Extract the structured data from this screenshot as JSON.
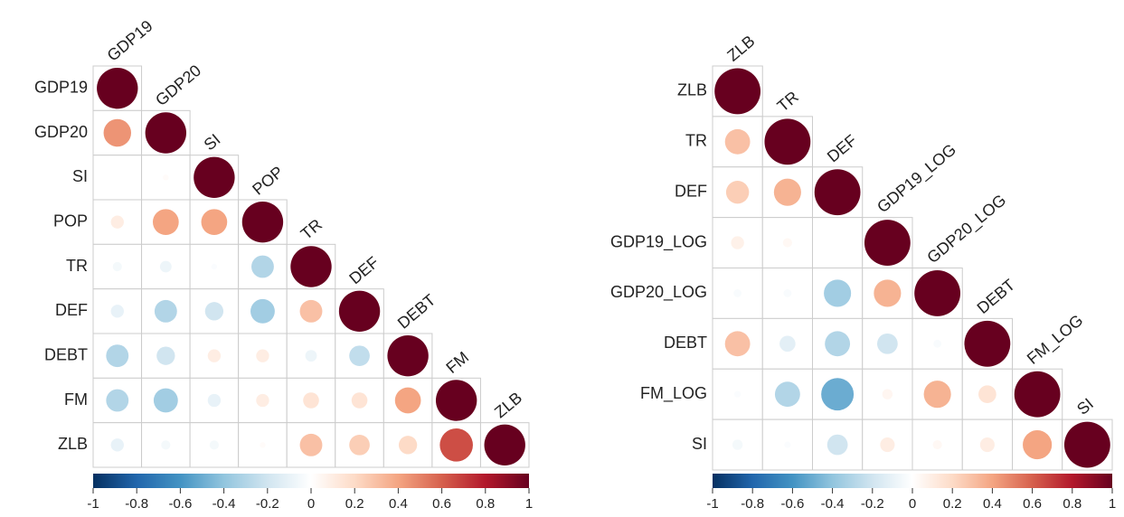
{
  "chart_data": [
    {
      "type": "corrplot",
      "variables": [
        "GDP19",
        "GDP20",
        "SI",
        "POP",
        "TR",
        "DEF",
        "DEBT",
        "FM",
        "ZLB"
      ],
      "matrix": [
        [
          1
        ],
        [
          0.45,
          1
        ],
        [
          0.0,
          0.02,
          1
        ],
        [
          0.1,
          0.4,
          0.4,
          1
        ],
        [
          -0.05,
          -0.08,
          -0.02,
          -0.3,
          1
        ],
        [
          -0.1,
          -0.3,
          -0.2,
          -0.35,
          0.3,
          1
        ],
        [
          -0.3,
          -0.2,
          0.1,
          0.1,
          -0.08,
          -0.25,
          1
        ],
        [
          -0.3,
          -0.35,
          -0.1,
          0.1,
          0.15,
          0.15,
          0.4,
          1
        ],
        [
          -0.1,
          -0.05,
          -0.05,
          0.02,
          0.3,
          0.25,
          0.2,
          0.65,
          1
        ]
      ],
      "clim": [
        -1,
        1
      ],
      "cticks": [
        -1,
        -0.8,
        -0.6,
        -0.4,
        -0.2,
        0,
        0.2,
        0.4,
        0.6,
        0.8,
        1
      ],
      "colormap": [
        "#053061",
        "#2166AC",
        "#4393C3",
        "#92C5DE",
        "#D1E5F0",
        "#FFFFFF",
        "#FDDBC7",
        "#F4A582",
        "#D6604D",
        "#B2182B",
        "#67001F"
      ]
    },
    {
      "type": "corrplot",
      "variables": [
        "ZLB",
        "TR",
        "DEF",
        "GDP19_LOG",
        "GDP20_LOG",
        "DEBT",
        "FM_LOG",
        "SI"
      ],
      "matrix": [
        [
          1
        ],
        [
          0.3,
          1
        ],
        [
          0.25,
          0.35,
          1
        ],
        [
          0.08,
          0.04,
          0.0,
          1
        ],
        [
          -0.03,
          -0.03,
          -0.35,
          0.35,
          1
        ],
        [
          0.3,
          -0.12,
          -0.3,
          -0.2,
          -0.03,
          1
        ],
        [
          -0.02,
          -0.3,
          -0.5,
          0.05,
          0.35,
          0.15,
          1
        ],
        [
          -0.05,
          -0.02,
          -0.2,
          0.1,
          0.04,
          0.1,
          0.4,
          1
        ]
      ],
      "clim": [
        -1,
        1
      ],
      "cticks": [
        -1,
        -0.8,
        -0.6,
        -0.4,
        -0.2,
        0,
        0.2,
        0.4,
        0.6,
        0.8,
        1
      ],
      "colormap": [
        "#053061",
        "#2166AC",
        "#4393C3",
        "#92C5DE",
        "#D1E5F0",
        "#FFFFFF",
        "#FDDBC7",
        "#F4A582",
        "#D6604D",
        "#B2182B",
        "#67001F"
      ]
    }
  ]
}
